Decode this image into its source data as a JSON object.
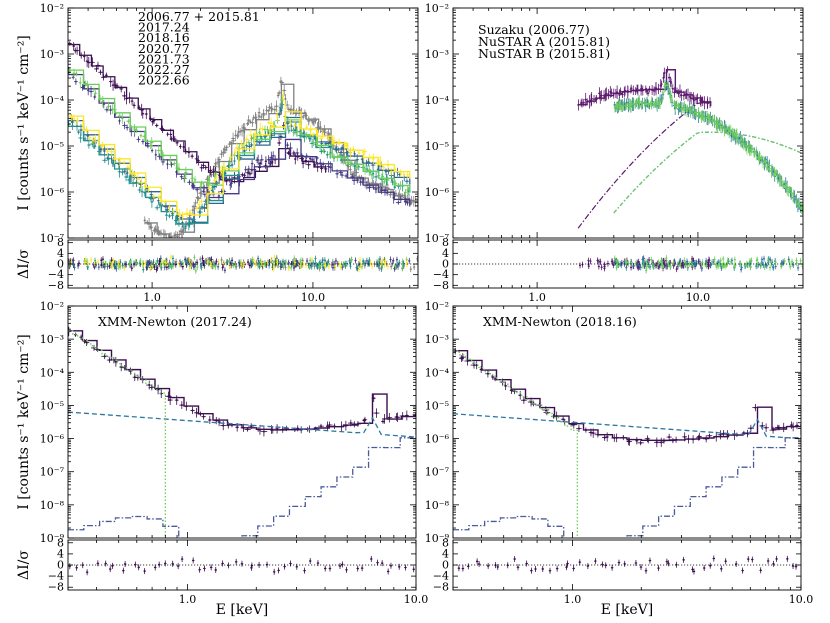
{
  "chart_data": [
    {
      "type": "scatter",
      "panel": "top-left",
      "xscale": "log",
      "yscale": "log",
      "xlim": [
        0.3,
        45
      ],
      "ylim": [
        1e-07,
        0.01
      ],
      "ylabel": "I [counts s⁻¹ keV⁻¹ cm⁻²]",
      "xticks": [
        "1.0",
        "10.0"
      ],
      "yticks": [
        "10⁻⁷",
        "10⁻⁶",
        "10⁻⁵",
        "10⁻⁴",
        "10⁻³",
        "10⁻²"
      ],
      "legend_position": "top-center",
      "residual": {
        "ylabel": "ΔI/σ",
        "ylim": [
          -9,
          9
        ],
        "yticks": [
          "−8",
          "−4",
          "0",
          "4",
          "8"
        ]
      },
      "series": [
        {
          "name": "2006.77 + 2015.81",
          "color": "#808080",
          "low_flux": 8e-06,
          "peak_flux": 0.0005,
          "high_flux": 6e-06
        },
        {
          "name": "2017.24",
          "color": "#3b0f50",
          "low_flux": 0.0018,
          "peak_flux": 3.5e-05,
          "high_flux": 4e-06
        },
        {
          "name": "2018.16",
          "color": "#443a83",
          "low_flux": 0.0004,
          "peak_flux": 5e-05,
          "high_flux": 5e-06
        },
        {
          "name": "2020.77",
          "color": "#31688e",
          "low_flux": 4e-05,
          "peak_flux": 0.00015,
          "high_flux": 1.5e-05
        },
        {
          "name": "2021.73",
          "color": "#21918c",
          "low_flux": 3e-05,
          "peak_flux": 0.00018,
          "high_flux": 1e-05
        },
        {
          "name": "2022.27",
          "color": "#6ccd5a",
          "low_flux": 0.0005,
          "peak_flux": 0.0002,
          "high_flux": 1e-05
        },
        {
          "name": "2022.66",
          "color": "#fde725",
          "low_flux": 5e-05,
          "peak_flux": 0.00025,
          "high_flux": 2e-05
        }
      ]
    },
    {
      "type": "scatter",
      "panel": "top-right",
      "xscale": "log",
      "yscale": "log",
      "xlim": [
        0.3,
        45
      ],
      "ylim": [
        1e-07,
        0.01
      ],
      "xticks": [
        "1.0",
        "10.0"
      ],
      "yticks": [
        "10⁻⁷",
        "10⁻⁶",
        "10⁻⁵",
        "10⁻⁴",
        "10⁻³",
        "10⁻²"
      ],
      "legend_position": "top-left",
      "residual": {
        "ylim": [
          -9,
          9
        ],
        "yticks": [
          "−8",
          "−4",
          "0",
          "4",
          "8"
        ]
      },
      "series": [
        {
          "name": "Suzaku (2006.77)",
          "color": "#5b1a6e",
          "x_range": [
            1.8,
            12
          ],
          "peak_flux": 0.0006
        },
        {
          "name": "NuSTAR A (2015.81)",
          "color": "#2f78a5",
          "x_range": [
            3,
            45
          ],
          "peak_flux": 0.0003
        },
        {
          "name": "NuSTAR B (2015.81)",
          "color": "#6ccd5a",
          "x_range": [
            3,
            45
          ],
          "peak_flux": 0.0003
        }
      ]
    },
    {
      "type": "scatter",
      "panel": "bottom-left",
      "title": "XMM-Newton (2017.24)",
      "xscale": "log",
      "yscale": "log",
      "xlim": [
        0.3,
        10
      ],
      "ylim": [
        1e-09,
        0.01
      ],
      "xlabel": "E [keV]",
      "ylabel": "I [counts s⁻¹ keV⁻¹ cm⁻²]",
      "xticks": [
        "1.0",
        "10.0"
      ],
      "yticks": [
        "10⁻⁹",
        "10⁻⁸",
        "10⁻⁷",
        "10⁻⁶",
        "10⁻⁵",
        "10⁻⁴",
        "10⁻³",
        "10⁻²"
      ],
      "residual": {
        "ylabel": "ΔI/σ",
        "ylim": [
          -9,
          9
        ],
        "yticks": [
          "−8",
          "−4",
          "0",
          "4",
          "8"
        ]
      },
      "data_color": "#3b0f50",
      "components": [
        {
          "style": "dashed",
          "color": "#2f78a5"
        },
        {
          "style": "dotted",
          "color": "#6ccd5a"
        },
        {
          "style": "dashdot",
          "color": "#4a5b9a"
        }
      ]
    },
    {
      "type": "scatter",
      "panel": "bottom-right",
      "title": "XMM-Newton (2018.16)",
      "xscale": "log",
      "yscale": "log",
      "xlim": [
        0.3,
        10
      ],
      "ylim": [
        1e-09,
        0.01
      ],
      "xlabel": "E [keV]",
      "xticks": [
        "1.0",
        "10.0"
      ],
      "yticks": [
        "10⁻⁹",
        "10⁻⁸",
        "10⁻⁷",
        "10⁻⁶",
        "10⁻⁵",
        "10⁻⁴",
        "10⁻³",
        "10⁻²"
      ],
      "residual": {
        "ylim": [
          -9,
          9
        ],
        "yticks": [
          "−8",
          "−4",
          "0",
          "4",
          "8"
        ]
      },
      "data_color": "#3b0f50",
      "components": [
        {
          "style": "dashed",
          "color": "#2f78a5"
        },
        {
          "style": "dotted",
          "color": "#6ccd5a"
        },
        {
          "style": "dashdot",
          "color": "#4a5b9a"
        }
      ]
    }
  ]
}
